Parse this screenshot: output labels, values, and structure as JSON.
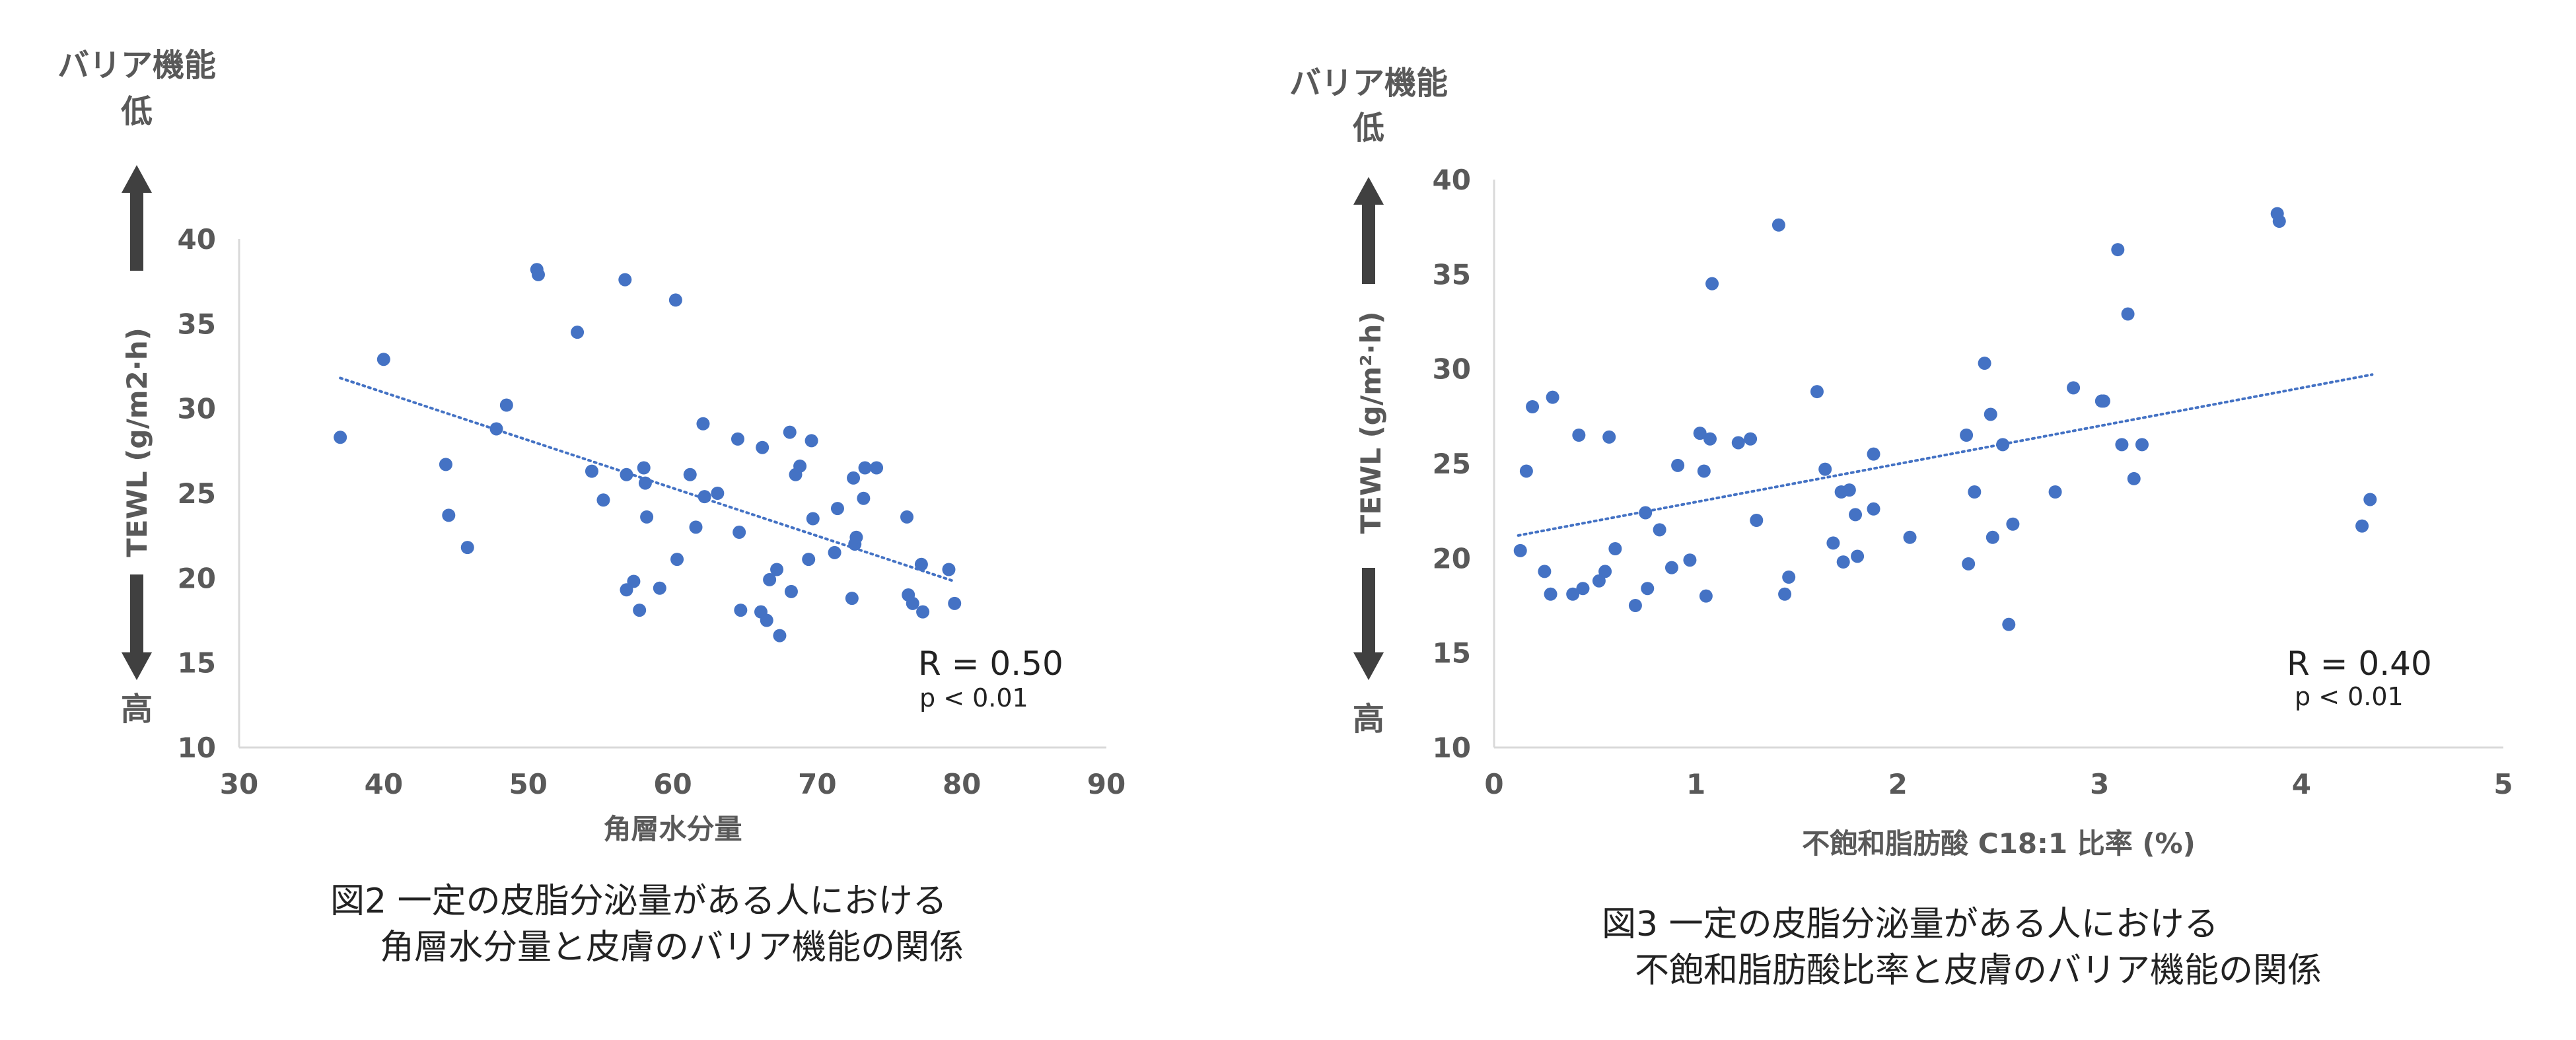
{
  "colors": {
    "point": "#4472c4",
    "trend": "#4472c4",
    "axis": "#d9d9d9",
    "arrow": "#404040",
    "text": "#595959"
  },
  "chart_data": [
    {
      "type": "scatter",
      "side_label_top": [
        "バリア機能",
        "低"
      ],
      "side_label_bottom": "高",
      "ylabel": "TEWL (g/m2·h)",
      "xlabel": "角層水分量",
      "xlim": [
        30,
        90
      ],
      "ylim": [
        10,
        40
      ],
      "x_ticks": [
        "30",
        "40",
        "50",
        "60",
        "70",
        "80",
        "90"
      ],
      "y_ticks": [
        "10",
        "15",
        "20",
        "25",
        "30",
        "35",
        "40"
      ],
      "annotation_r": "R = 0.50",
      "annotation_p": "p < 0.01",
      "trendline": {
        "style": "dotted",
        "x": [
          37,
          79.5
        ],
        "y": [
          31.8,
          19.8
        ]
      },
      "points": [
        [
          37,
          28.3
        ],
        [
          40,
          32.9
        ],
        [
          44.3,
          26.7
        ],
        [
          44.5,
          23.7
        ],
        [
          45.8,
          21.8
        ],
        [
          47.8,
          28.8
        ],
        [
          48.5,
          30.2
        ],
        [
          50.6,
          38.2
        ],
        [
          50.7,
          37.9
        ],
        [
          53.4,
          34.5
        ],
        [
          54.4,
          26.3
        ],
        [
          55.2,
          24.6
        ],
        [
          56.7,
          37.6
        ],
        [
          56.8,
          26.1
        ],
        [
          56.8,
          19.3
        ],
        [
          57.3,
          19.8
        ],
        [
          57.7,
          18.1
        ],
        [
          58,
          26.5
        ],
        [
          58.1,
          25.6
        ],
        [
          58.2,
          23.6
        ],
        [
          59.1,
          19.4
        ],
        [
          60.2,
          36.4
        ],
        [
          60.3,
          21.1
        ],
        [
          61.2,
          26.1
        ],
        [
          61.6,
          23
        ],
        [
          62.1,
          29.1
        ],
        [
          62.2,
          24.8
        ],
        [
          63.1,
          25
        ],
        [
          64.5,
          28.2
        ],
        [
          64.6,
          22.7
        ],
        [
          64.7,
          18.1
        ],
        [
          66.1,
          18
        ],
        [
          66.2,
          27.7
        ],
        [
          66.5,
          17.5
        ],
        [
          66.7,
          19.9
        ],
        [
          67.2,
          20.5
        ],
        [
          67.4,
          16.6
        ],
        [
          68.1,
          28.6
        ],
        [
          68.2,
          19.2
        ],
        [
          68.5,
          26.1
        ],
        [
          68.8,
          26.6
        ],
        [
          69.4,
          21.1
        ],
        [
          69.6,
          28.1
        ],
        [
          69.7,
          23.5
        ],
        [
          71.2,
          21.5
        ],
        [
          71.4,
          24.1
        ],
        [
          72.4,
          18.8
        ],
        [
          72.5,
          25.9
        ],
        [
          72.6,
          22
        ],
        [
          72.7,
          22.4
        ],
        [
          73.2,
          24.7
        ],
        [
          73.3,
          26.5
        ],
        [
          74.1,
          26.5
        ],
        [
          76.2,
          23.6
        ],
        [
          76.3,
          19
        ],
        [
          76.6,
          18.5
        ],
        [
          77.2,
          20.8
        ],
        [
          77.3,
          18
        ],
        [
          79.1,
          20.5
        ],
        [
          79.5,
          18.5
        ]
      ]
    },
    {
      "type": "scatter",
      "side_label_top": [
        "バリア機能",
        "低"
      ],
      "side_label_bottom": "高",
      "ylabel": "TEWL (g/m²·h)",
      "xlabel": "不飽和脂肪酸 C18:1 比率 (%)",
      "xlim": [
        0,
        5
      ],
      "ylim": [
        10,
        40
      ],
      "x_ticks": [
        "0",
        "1",
        "2",
        "3",
        "4",
        "5"
      ],
      "y_ticks": [
        "10",
        "15",
        "20",
        "25",
        "30",
        "35",
        "40"
      ],
      "annotation_r": "R = 0.40",
      "annotation_p": "p < 0.01",
      "trendline": {
        "style": "dotted",
        "x": [
          0.12,
          4.35
        ],
        "y": [
          21.2,
          29.7
        ]
      },
      "points": [
        [
          0.13,
          20.4
        ],
        [
          0.16,
          24.6
        ],
        [
          0.19,
          28
        ],
        [
          0.25,
          19.3
        ],
        [
          0.28,
          18.1
        ],
        [
          0.29,
          28.5
        ],
        [
          0.39,
          18.1
        ],
        [
          0.42,
          26.5
        ],
        [
          0.44,
          18.4
        ],
        [
          0.52,
          18.8
        ],
        [
          0.55,
          19.3
        ],
        [
          0.57,
          26.4
        ],
        [
          0.6,
          20.5
        ],
        [
          0.7,
          17.5
        ],
        [
          0.75,
          22.4
        ],
        [
          0.76,
          18.4
        ],
        [
          0.82,
          21.5
        ],
        [
          0.88,
          19.5
        ],
        [
          0.91,
          24.9
        ],
        [
          0.97,
          19.9
        ],
        [
          1.02,
          26.6
        ],
        [
          1.04,
          24.6
        ],
        [
          1.05,
          18
        ],
        [
          1.07,
          26.3
        ],
        [
          1.08,
          34.5
        ],
        [
          1.21,
          26.1
        ],
        [
          1.27,
          26.3
        ],
        [
          1.3,
          22
        ],
        [
          1.41,
          37.6
        ],
        [
          1.44,
          18.1
        ],
        [
          1.46,
          19
        ],
        [
          1.6,
          28.8
        ],
        [
          1.64,
          24.7
        ],
        [
          1.68,
          20.8
        ],
        [
          1.72,
          23.5
        ],
        [
          1.73,
          19.8
        ],
        [
          1.76,
          23.6
        ],
        [
          1.79,
          22.3
        ],
        [
          1.8,
          20.1
        ],
        [
          1.88,
          25.5
        ],
        [
          1.88,
          22.6
        ],
        [
          2.06,
          21.1
        ],
        [
          2.34,
          26.5
        ],
        [
          2.35,
          19.7
        ],
        [
          2.38,
          23.5
        ],
        [
          2.43,
          30.3
        ],
        [
          2.46,
          27.6
        ],
        [
          2.47,
          21.1
        ],
        [
          2.52,
          26
        ],
        [
          2.55,
          16.5
        ],
        [
          2.57,
          21.8
        ],
        [
          2.78,
          23.5
        ],
        [
          2.87,
          29
        ],
        [
          3.01,
          28.3
        ],
        [
          3.02,
          28.3
        ],
        [
          3.09,
          36.3
        ],
        [
          3.11,
          26
        ],
        [
          3.14,
          32.9
        ],
        [
          3.17,
          24.2
        ],
        [
          3.21,
          26
        ],
        [
          3.88,
          38.2
        ],
        [
          3.89,
          37.8
        ],
        [
          4.3,
          21.7
        ],
        [
          4.34,
          23.1
        ]
      ]
    }
  ],
  "captions": [
    [
      "図2 一定の皮脂分泌量がある人における",
      "角層水分量と皮膚のバリア機能の関係"
    ],
    [
      "図3 一定の皮脂分泌量がある人における",
      "不飽和脂肪酸比率と皮膚のバリア機能の関係"
    ]
  ]
}
